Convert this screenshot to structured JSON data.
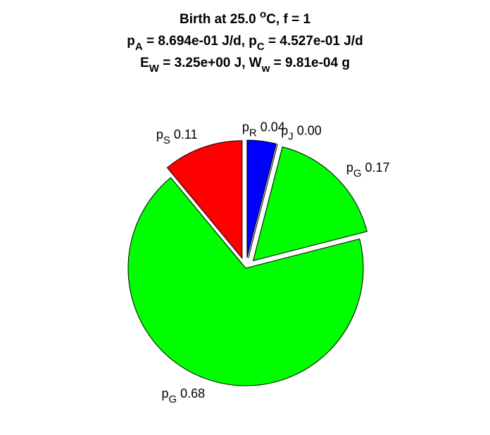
{
  "chart_data": {
    "type": "pie",
    "title": [
      [
        {
          "text": "Birth at 25.0 "
        },
        {
          "text": "o",
          "shift": "sup"
        },
        {
          "text": "C, f = 1"
        }
      ],
      [
        {
          "text": "p"
        },
        {
          "text": "A",
          "shift": "sub"
        },
        {
          "text": " = 8.694e-01 J/d, p"
        },
        {
          "text": "C",
          "shift": "sub"
        },
        {
          "text": " = 4.527e-01 J/d"
        }
      ],
      [
        {
          "text": "E"
        },
        {
          "text": "W",
          "shift": "sub"
        },
        {
          "text": " = 3.25e+00 J, W"
        },
        {
          "text": "w",
          "shift": "sub"
        },
        {
          "text": " = 9.81e-04 g"
        }
      ]
    ],
    "categories": [
      {
        "text": "p",
        "sub": "R"
      },
      {
        "text": "p",
        "sub": "J"
      },
      {
        "text": "p",
        "sub": "G"
      },
      {
        "text": "p",
        "sub": "G"
      },
      {
        "text": "p",
        "sub": "S"
      }
    ],
    "values": [
      0.04,
      0.0,
      0.17,
      0.68,
      0.11
    ],
    "value_labels": [
      "0.04",
      "0.00",
      "0.17",
      "0.68",
      "0.11"
    ],
    "colors": [
      "#0000ff",
      "#00ffff",
      "#00ff00",
      "#00ff00",
      "#ff0000"
    ],
    "explode": [
      true,
      true,
      true,
      false,
      true
    ]
  }
}
